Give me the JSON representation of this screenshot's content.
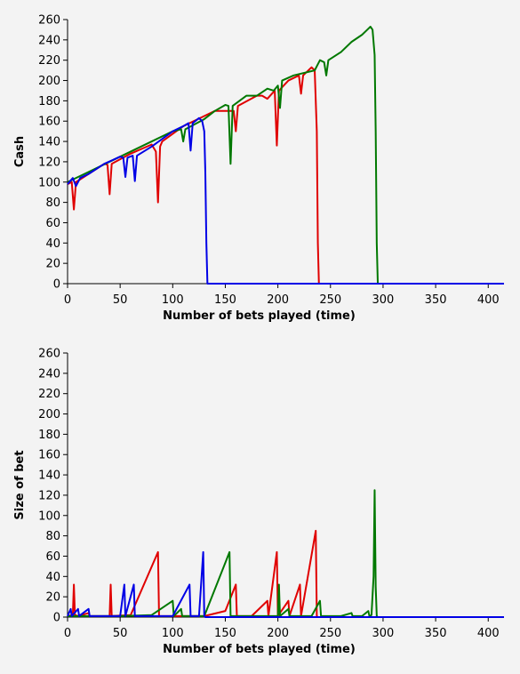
{
  "colors": {
    "red": "#e00000",
    "green": "#007800",
    "blue": "#0000e6",
    "axis": "#000000",
    "background": "#f3f3f3"
  },
  "chart_data": [
    {
      "type": "line",
      "title": "",
      "xlabel": "Number of bets played (time)",
      "ylabel": "Cash",
      "xlim": [
        0,
        415
      ],
      "ylim": [
        0,
        260
      ],
      "xticks": [
        0,
        50,
        100,
        150,
        200,
        250,
        300,
        350,
        400
      ],
      "yticks": [
        0,
        20,
        40,
        60,
        80,
        100,
        120,
        140,
        160,
        180,
        200,
        220,
        240,
        260
      ],
      "grid": false,
      "legend": "none",
      "series": [
        {
          "color": "#e00000",
          "points": [
            [
              0,
              98
            ],
            [
              4,
              100
            ],
            [
              6,
              73
            ],
            [
              8,
              100
            ],
            [
              20,
              108
            ],
            [
              35,
              118
            ],
            [
              38,
              117
            ],
            [
              40,
              88
            ],
            [
              42,
              118
            ],
            [
              60,
              128
            ],
            [
              80,
              137
            ],
            [
              84,
              130
            ],
            [
              86,
              80
            ],
            [
              88,
              135
            ],
            [
              90,
              140
            ],
            [
              110,
              155
            ],
            [
              130,
              165
            ],
            [
              140,
              170
            ],
            [
              158,
              170
            ],
            [
              160,
              150
            ],
            [
              162,
              175
            ],
            [
              180,
              185
            ],
            [
              185,
              185
            ],
            [
              190,
              182
            ],
            [
              197,
              190
            ],
            [
              199,
              136
            ],
            [
              201,
              190
            ],
            [
              210,
              200
            ],
            [
              220,
              205
            ],
            [
              222,
              187
            ],
            [
              224,
              205
            ],
            [
              232,
              213
            ],
            [
              235,
              210
            ],
            [
              237,
              150
            ],
            [
              238,
              40
            ],
            [
              239,
              0
            ],
            [
              415,
              0
            ]
          ]
        },
        {
          "color": "#007800",
          "points": [
            [
              0,
              100
            ],
            [
              20,
              110
            ],
            [
              50,
              125
            ],
            [
              80,
              140
            ],
            [
              100,
              150
            ],
            [
              108,
              152
            ],
            [
              110,
              140
            ],
            [
              112,
              152
            ],
            [
              130,
              162
            ],
            [
              140,
              170
            ],
            [
              150,
              176
            ],
            [
              153,
              175
            ],
            [
              155,
              118
            ],
            [
              157,
              175
            ],
            [
              170,
              185
            ],
            [
              180,
              185
            ],
            [
              190,
              192
            ],
            [
              196,
              190
            ],
            [
              200,
              195
            ],
            [
              202,
              173
            ],
            [
              204,
              200
            ],
            [
              215,
              205
            ],
            [
              235,
              210
            ],
            [
              240,
              220
            ],
            [
              244,
              218
            ],
            [
              246,
              205
            ],
            [
              248,
              220
            ],
            [
              260,
              228
            ],
            [
              270,
              238
            ],
            [
              280,
              245
            ],
            [
              285,
              250
            ],
            [
              288,
              253
            ],
            [
              290,
              250
            ],
            [
              292,
              225
            ],
            [
              293,
              150
            ],
            [
              294,
              40
            ],
            [
              295,
              0
            ],
            [
              415,
              0
            ]
          ]
        },
        {
          "color": "#0000e6",
          "points": [
            [
              0,
              98
            ],
            [
              5,
              104
            ],
            [
              8,
              96
            ],
            [
              12,
              104
            ],
            [
              20,
              108
            ],
            [
              35,
              118
            ],
            [
              50,
              125
            ],
            [
              53,
              124
            ],
            [
              55,
              105
            ],
            [
              57,
              124
            ],
            [
              62,
              126
            ],
            [
              64,
              101
            ],
            [
              66,
              126
            ],
            [
              80,
              135
            ],
            [
              100,
              150
            ],
            [
              110,
              155
            ],
            [
              115,
              158
            ],
            [
              117,
              131
            ],
            [
              119,
              158
            ],
            [
              125,
              163
            ],
            [
              128,
              160
            ],
            [
              130,
              150
            ],
            [
              131,
              110
            ],
            [
              132,
              40
            ],
            [
              133,
              0
            ],
            [
              415,
              0
            ]
          ]
        }
      ]
    },
    {
      "type": "line",
      "title": "",
      "xlabel": "Number of bets played (time)",
      "ylabel": "Size of bet",
      "xlim": [
        0,
        415
      ],
      "ylim": [
        0,
        260
      ],
      "xticks": [
        0,
        50,
        100,
        150,
        200,
        250,
        300,
        350,
        400
      ],
      "yticks": [
        0,
        20,
        40,
        60,
        80,
        100,
        120,
        140,
        160,
        180,
        200,
        220,
        240,
        260
      ],
      "grid": false,
      "legend": "none",
      "series": [
        {
          "color": "#e00000",
          "points": [
            [
              0,
              1
            ],
            [
              5,
              2
            ],
            [
              6,
              32
            ],
            [
              7,
              2
            ],
            [
              10,
              1
            ],
            [
              20,
              4
            ],
            [
              21,
              1
            ],
            [
              40,
              1
            ],
            [
              41,
              32
            ],
            [
              42,
              1
            ],
            [
              60,
              2
            ],
            [
              86,
              64
            ],
            [
              87,
              1
            ],
            [
              100,
              1
            ],
            [
              125,
              1
            ],
            [
              130,
              1
            ],
            [
              150,
              6
            ],
            [
              160,
              32
            ],
            [
              161,
              1
            ],
            [
              175,
              1
            ],
            [
              190,
              16
            ],
            [
              191,
              1
            ],
            [
              199,
              64
            ],
            [
              200,
              1
            ],
            [
              210,
              16
            ],
            [
              211,
              1
            ],
            [
              221,
              32
            ],
            [
              222,
              1
            ],
            [
              236,
              85
            ],
            [
              237,
              1
            ],
            [
              238,
              0
            ],
            [
              415,
              0
            ]
          ]
        },
        {
          "color": "#007800",
          "points": [
            [
              0,
              1
            ],
            [
              50,
              1
            ],
            [
              80,
              2
            ],
            [
              100,
              16
            ],
            [
              101,
              1
            ],
            [
              108,
              8
            ],
            [
              109,
              1
            ],
            [
              130,
              1
            ],
            [
              154,
              64
            ],
            [
              155,
              1
            ],
            [
              170,
              1
            ],
            [
              200,
              1
            ],
            [
              201,
              32
            ],
            [
              202,
              1
            ],
            [
              210,
              8
            ],
            [
              211,
              1
            ],
            [
              220,
              1
            ],
            [
              232,
              1
            ],
            [
              240,
              16
            ],
            [
              241,
              1
            ],
            [
              260,
              1
            ],
            [
              270,
              4
            ],
            [
              271,
              1
            ],
            [
              280,
              1
            ],
            [
              286,
              6
            ],
            [
              287,
              1
            ],
            [
              289,
              2
            ],
            [
              291,
              40
            ],
            [
              292,
              125
            ],
            [
              293,
              30
            ],
            [
              294,
              1
            ],
            [
              295,
              0
            ],
            [
              415,
              0
            ]
          ]
        },
        {
          "color": "#0000e6",
          "points": [
            [
              0,
              1
            ],
            [
              3,
              8
            ],
            [
              4,
              1
            ],
            [
              10,
              8
            ],
            [
              11,
              1
            ],
            [
              20,
              8
            ],
            [
              21,
              1
            ],
            [
              30,
              1
            ],
            [
              50,
              1
            ],
            [
              54,
              32
            ],
            [
              55,
              1
            ],
            [
              63,
              32
            ],
            [
              64,
              1
            ],
            [
              80,
              1
            ],
            [
              100,
              1
            ],
            [
              116,
              32
            ],
            [
              117,
              1
            ],
            [
              125,
              1
            ],
            [
              129,
              64
            ],
            [
              130,
              1
            ],
            [
              131,
              0
            ],
            [
              415,
              0
            ]
          ]
        }
      ]
    }
  ]
}
